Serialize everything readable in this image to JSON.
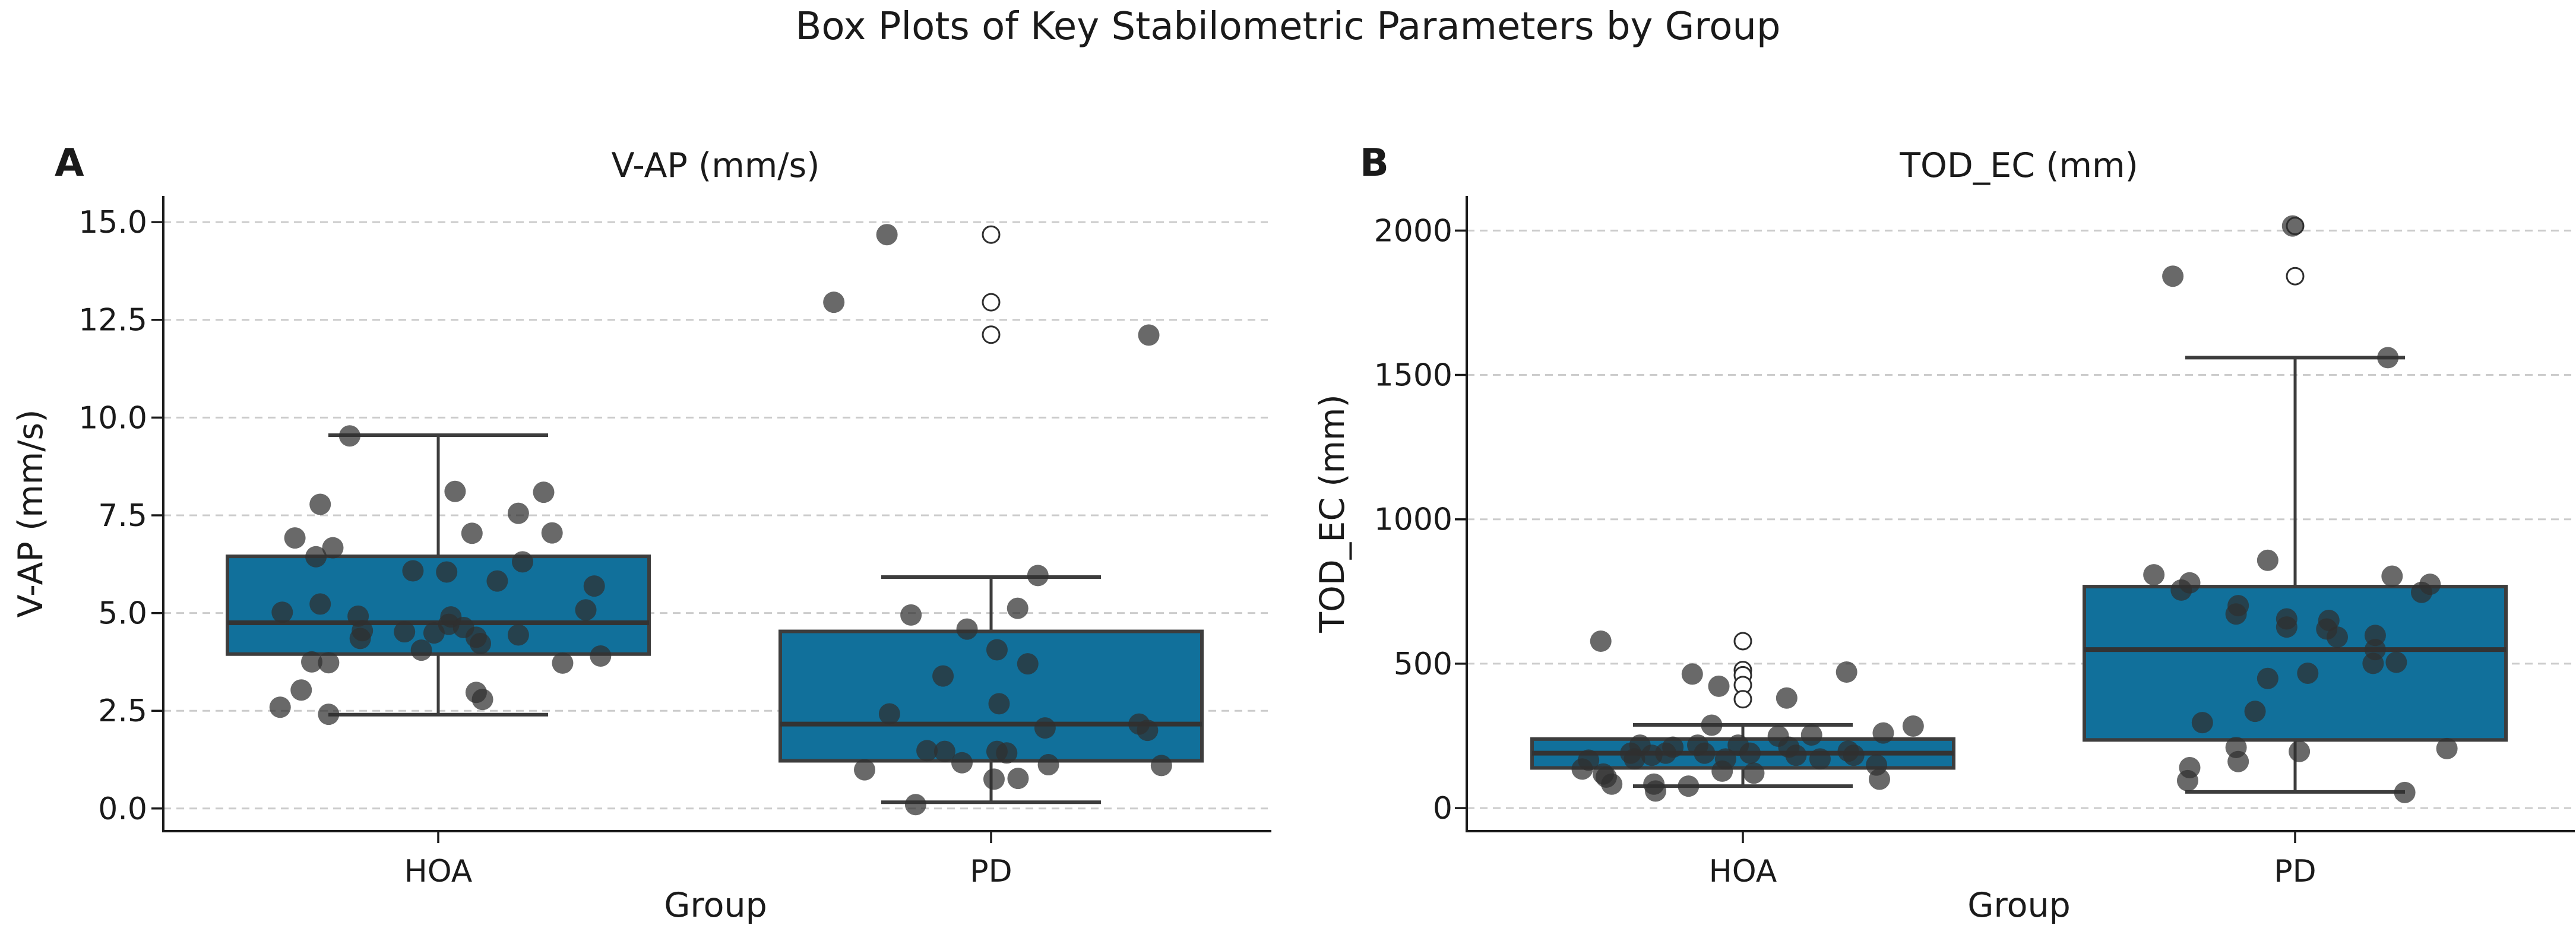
{
  "figure": {
    "title": "Box Plots of Key Stabilometric Parameters by Group"
  },
  "colors": {
    "box_fill": "#11709b",
    "box_edge": "#3d3d3d",
    "median": "#333333",
    "whisker": "#3d3d3d",
    "point": "#2f2f2f",
    "flier_edge": "#2f2f2f",
    "grid": "#cccccc",
    "spine": "#1a1a1a",
    "text": "#1a1a1a"
  },
  "chart_data": [
    {
      "type": "box",
      "panel_label": "A",
      "title": "V-AP (mm/s)",
      "xlabel": "Group",
      "ylabel": "V-AP (mm/s)",
      "categories": [
        "HOA",
        "PD"
      ],
      "yticks": [
        0.0,
        2.5,
        5.0,
        7.5,
        10.0,
        12.5,
        15.0
      ],
      "ytick_labels": [
        "0.0",
        "2.5",
        "5.0",
        "7.5",
        "10.0",
        "12.5",
        "15.0"
      ],
      "ylim": [
        -0.58,
        15.67
      ],
      "grid": "horizontal-dashed",
      "boxes": [
        {
          "category": "HOA",
          "q1": 3.95,
          "median": 4.75,
          "q3": 6.45,
          "whisker_low": 2.4,
          "whisker_high": 9.55,
          "outliers": []
        },
        {
          "category": "PD",
          "q1": 1.22,
          "median": 2.16,
          "q3": 4.53,
          "whisker_low": 0.16,
          "whisker_high": 5.92,
          "outliers": [
            14.68,
            12.95,
            12.12
          ]
        }
      ],
      "points": {
        "HOA": [
          [
            -0.21,
            9.53
          ],
          [
            0.04,
            8.11
          ],
          [
            0.25,
            8.09
          ],
          [
            -0.28,
            7.78
          ],
          [
            0.19,
            7.55
          ],
          [
            0.27,
            7.05
          ],
          [
            0.08,
            7.04
          ],
          [
            -0.34,
            6.92
          ],
          [
            -0.25,
            6.67
          ],
          [
            -0.29,
            6.44
          ],
          [
            0.2,
            6.31
          ],
          [
            -0.06,
            6.08
          ],
          [
            0.02,
            6.05
          ],
          [
            0.14,
            5.82
          ],
          [
            0.37,
            5.69
          ],
          [
            -0.28,
            5.23
          ],
          [
            0.35,
            5.08
          ],
          [
            -0.37,
            5.02
          ],
          [
            -0.19,
            4.92
          ],
          [
            0.03,
            4.9
          ],
          [
            0.025,
            4.71
          ],
          [
            0.06,
            4.63
          ],
          [
            -0.18,
            4.55
          ],
          [
            -0.08,
            4.52
          ],
          [
            -0.01,
            4.49
          ],
          [
            0.19,
            4.44
          ],
          [
            0.09,
            4.38
          ],
          [
            -0.185,
            4.35
          ],
          [
            0.1,
            4.22
          ],
          [
            -0.04,
            4.05
          ],
          [
            0.385,
            3.9
          ],
          [
            -0.3,
            3.75
          ],
          [
            -0.26,
            3.73
          ],
          [
            0.295,
            3.72
          ],
          [
            -0.325,
            3.03
          ],
          [
            0.09,
            2.97
          ],
          [
            0.105,
            2.79
          ],
          [
            -0.375,
            2.59
          ],
          [
            -0.26,
            2.41
          ]
        ],
        "PD": [
          [
            -0.247,
            14.68
          ],
          [
            -0.373,
            12.95
          ],
          [
            0.374,
            12.11
          ],
          [
            0.111,
            5.96
          ],
          [
            0.063,
            5.12
          ],
          [
            -0.19,
            4.95
          ],
          [
            -0.057,
            4.59
          ],
          [
            0.014,
            4.06
          ],
          [
            0.087,
            3.7
          ],
          [
            -0.114,
            3.39
          ],
          [
            0.019,
            2.68
          ],
          [
            -0.241,
            2.42
          ],
          [
            0.351,
            2.16
          ],
          [
            0.128,
            2.06
          ],
          [
            0.371,
            2.0
          ],
          [
            -0.152,
            1.48
          ],
          [
            -0.11,
            1.46
          ],
          [
            0.014,
            1.46
          ],
          [
            0.037,
            1.42
          ],
          [
            -0.069,
            1.17
          ],
          [
            0.136,
            1.12
          ],
          [
            0.404,
            1.1
          ],
          [
            -0.3,
            0.99
          ],
          [
            0.064,
            0.77
          ],
          [
            0.007,
            0.75
          ],
          [
            -0.179,
            0.1
          ]
        ]
      }
    },
    {
      "type": "box",
      "panel_label": "B",
      "title": "TOD_EC (mm)",
      "xlabel": "Group",
      "ylabel": "TOD_EC (mm)",
      "categories": [
        "HOA",
        "PD"
      ],
      "yticks": [
        0,
        500,
        1000,
        1500,
        2000
      ],
      "ytick_labels": [
        "0",
        "500",
        "1000",
        "1500",
        "2000"
      ],
      "ylim": [
        -80,
        2120
      ],
      "grid": "horizontal-dashed",
      "boxes": [
        {
          "category": "HOA",
          "q1": 139,
          "median": 190,
          "q3": 239,
          "whisker_low": 76,
          "whisker_high": 288,
          "outliers": [
            578,
            478,
            460,
            426,
            377
          ]
        },
        {
          "category": "PD",
          "q1": 236,
          "median": 549,
          "q3": 767,
          "whisker_low": 56,
          "whisker_high": 1560,
          "outliers": [
            2016,
            1842
          ]
        }
      ],
      "points": {
        "HOA": [
          [
            -0.337,
            578
          ],
          [
            -0.12,
            464
          ],
          [
            -0.057,
            422
          ],
          [
            0.104,
            381
          ],
          [
            0.246,
            471
          ],
          [
            -0.074,
            287
          ],
          [
            0.404,
            284
          ],
          [
            0.333,
            260
          ],
          [
            0.163,
            253
          ],
          [
            0.084,
            249
          ],
          [
            -0.244,
            218
          ],
          [
            -0.107,
            218
          ],
          [
            -0.011,
            218
          ],
          [
            -0.166,
            211
          ],
          [
            0.109,
            211
          ],
          [
            0.25,
            197
          ],
          [
            -0.266,
            190
          ],
          [
            -0.183,
            190
          ],
          [
            -0.091,
            190
          ],
          [
            0.017,
            190
          ],
          [
            -0.216,
            183
          ],
          [
            0.126,
            183
          ],
          [
            0.263,
            183
          ],
          [
            -0.257,
            170
          ],
          [
            -0.041,
            170
          ],
          [
            0.183,
            170
          ],
          [
            -0.366,
            166
          ],
          [
            0.317,
            149
          ],
          [
            -0.381,
            135
          ],
          [
            -0.049,
            128
          ],
          [
            0.026,
            121
          ],
          [
            -0.331,
            118
          ],
          [
            -0.324,
            107
          ],
          [
            0.324,
            100
          ],
          [
            -0.311,
            83
          ],
          [
            -0.211,
            83
          ],
          [
            -0.129,
            76
          ],
          [
            -0.207,
            59
          ]
        ],
        "PD": [
          [
            -0.006,
            2016
          ],
          [
            -0.29,
            1842
          ],
          [
            0.22,
            1560
          ],
          [
            -0.065,
            858
          ],
          [
            -0.335,
            808
          ],
          [
            0.23,
            803
          ],
          [
            -0.25,
            780
          ],
          [
            0.32,
            775
          ],
          [
            -0.27,
            755
          ],
          [
            0.3,
            747
          ],
          [
            -0.135,
            701
          ],
          [
            -0.14,
            672
          ],
          [
            -0.02,
            655
          ],
          [
            0.08,
            650
          ],
          [
            -0.02,
            627
          ],
          [
            0.075,
            620
          ],
          [
            0.19,
            598
          ],
          [
            0.1,
            592
          ],
          [
            0.19,
            549
          ],
          [
            0.24,
            505
          ],
          [
            0.185,
            501
          ],
          [
            0.03,
            467
          ],
          [
            -0.065,
            449
          ],
          [
            -0.095,
            335
          ],
          [
            -0.22,
            296
          ],
          [
            -0.14,
            210
          ],
          [
            0.36,
            206
          ],
          [
            0.01,
            196
          ],
          [
            -0.135,
            161
          ],
          [
            -0.25,
            140
          ],
          [
            -0.255,
            95
          ],
          [
            0.26,
            54
          ]
        ]
      }
    }
  ]
}
